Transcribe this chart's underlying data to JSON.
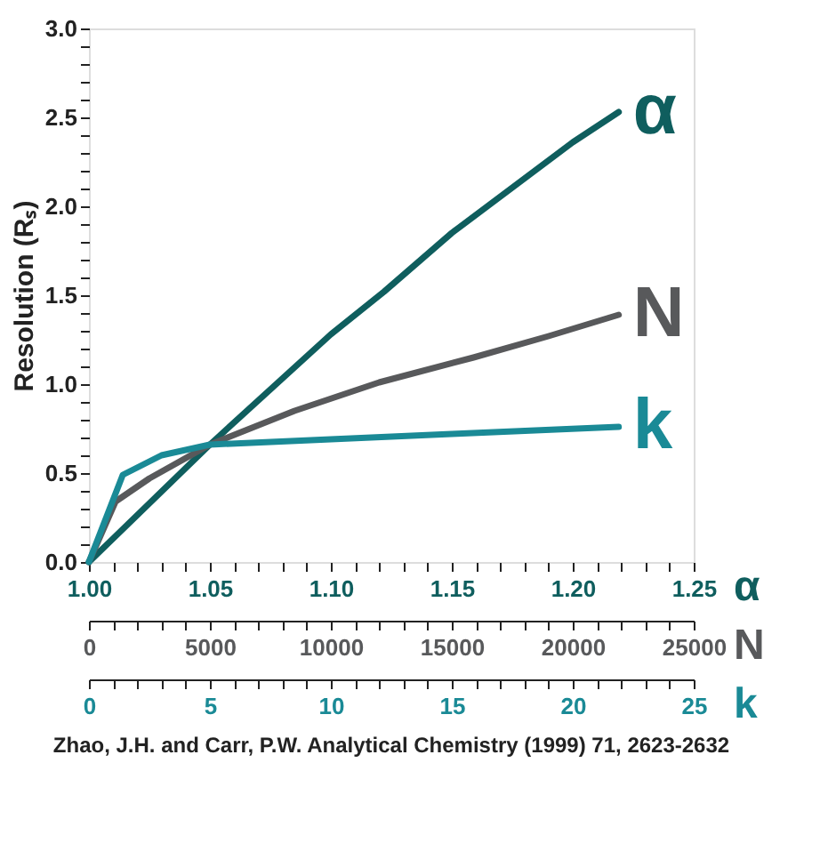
{
  "chart_data": [
    {
      "type": "line",
      "ylabel": "Resolution (Rₛ)",
      "xlabel": "α",
      "x2label": "N",
      "xlim": [
        1.0,
        1.25
      ],
      "xticks": [
        {
          "value": 1.0,
          "label": "1.00"
        },
        {
          "value": 1.01,
          "label": null
        },
        {
          "value": 1.02,
          "label": null
        },
        {
          "value": 1.03,
          "label": null
        },
        {
          "value": 1.04,
          "label": null
        },
        1.05,
        {
          "value": 1.06,
          "label": null
        },
        {
          "value": 1.07,
          "label": null
        },
        {
          "value": 1.08,
          "label": null
        },
        {
          "value": 1.09,
          "label": null
        },
        {
          "value": 1.1,
          "label": "1.10"
        },
        {
          "value": 1.11,
          "label": null
        },
        {
          "value": 1.12,
          "label": null
        },
        {
          "value": 1.13,
          "label": null
        },
        {
          "value": 1.14,
          "label": null
        },
        1.15,
        {
          "value": 1.16,
          "label": null
        },
        {
          "value": 1.17,
          "label": null
        },
        {
          "value": 1.18,
          "label": null
        },
        {
          "value": 1.19,
          "label": null
        },
        {
          "value": 1.2,
          "label": "1.20"
        },
        {
          "value": 1.21,
          "label": null
        },
        {
          "value": 1.22,
          "label": null
        },
        {
          "value": 1.23,
          "label": null
        },
        {
          "value": 1.24,
          "label": null
        },
        1.25
      ],
      "x2lim": [
        0,
        25000
      ],
      "x2ticks": [
        0,
        {
          "value": 1000,
          "label": null
        },
        {
          "value": 2000,
          "label": null
        },
        {
          "value": 3000,
          "label": null
        },
        {
          "value": 4000,
          "label": null
        },
        5000,
        {
          "value": 6000,
          "label": null
        },
        {
          "value": 7000,
          "label": null
        },
        {
          "value": 8000,
          "label": null
        },
        {
          "value": 9000,
          "label": null
        },
        10000,
        {
          "value": 11000,
          "label": null
        },
        {
          "value": 12000,
          "label": null
        },
        {
          "value": 13000,
          "label": null
        },
        {
          "value": 14000,
          "label": null
        },
        15000,
        {
          "value": 16000,
          "label": null
        },
        {
          "value": 17000,
          "label": null
        },
        {
          "value": 18000,
          "label": null
        },
        {
          "value": 19000,
          "label": null
        },
        20000,
        {
          "value": 21000,
          "label": null
        },
        {
          "value": 22000,
          "label": null
        },
        {
          "value": 23000,
          "label": null
        },
        {
          "value": 24000,
          "label": null
        },
        25000
      ],
      "ylim": [
        0,
        3.0
      ],
      "yticks": [
        {
          "value": 0,
          "label": "0.0"
        },
        {
          "value": 0.1,
          "label": null
        },
        {
          "value": 0.2,
          "label": null
        },
        {
          "value": 0.3,
          "label": null
        },
        {
          "value": 0.4,
          "label": null
        },
        0.5,
        {
          "value": 0.6,
          "label": null
        },
        {
          "value": 0.7,
          "label": null
        },
        {
          "value": 0.8,
          "label": null
        },
        {
          "value": 0.9,
          "label": null
        },
        {
          "value": 1.0,
          "label": "1.0"
        },
        {
          "value": 1.1,
          "label": null
        },
        {
          "value": 1.2,
          "label": null
        },
        {
          "value": 1.3,
          "label": null
        },
        {
          "value": 1.4,
          "label": null
        },
        1.5,
        {
          "value": 1.6,
          "label": null
        },
        {
          "value": 1.7,
          "label": null
        },
        {
          "value": 1.8,
          "label": null
        },
        {
          "value": 1.9,
          "label": null
        },
        {
          "value": 2.0,
          "label": "2.0"
        },
        {
          "value": 2.1,
          "label": null
        },
        {
          "value": 2.2,
          "label": null
        },
        {
          "value": 2.3,
          "label": null
        },
        {
          "value": 2.4,
          "label": null
        },
        2.5,
        {
          "value": 2.6,
          "label": null
        },
        {
          "value": 2.7,
          "label": null
        },
        {
          "value": 2.8,
          "label": null
        },
        {
          "value": 2.9,
          "label": null
        },
        {
          "value": 3.0,
          "label": "3.0"
        }
      ],
      "legend": false,
      "marker": "none",
      "line_style": "solid",
      "series": [
        {
          "name": "α",
          "color": "#0f5e5e",
          "x": [
            1.0,
            1.05,
            1.1,
            1.122,
            1.15,
            1.2,
            1.219
          ],
          "values": [
            0,
            0.66,
            1.28,
            1.52,
            1.85,
            2.36,
            2.53
          ]
        },
        {
          "name": "N",
          "color": "#58595b",
          "axis": "x2",
          "x": [
            0,
            1100,
            2500,
            5000,
            8500,
            12000,
            15900,
            19000,
            21900
          ],
          "values": [
            0,
            0.34,
            0.47,
            0.66,
            0.85,
            1.01,
            1.15,
            1.27,
            1.39
          ]
        }
      ],
      "annotations": [
        "Zhao, J.H. and Carr, P.W. Analytical Chemistry (1999) 71, 2623-2632"
      ]
    },
    {
      "type": "line",
      "xlabel": "k",
      "xlim": [
        0,
        25
      ],
      "xticks": [
        0,
        {
          "value": 1,
          "label": null
        },
        {
          "value": 2,
          "label": null
        },
        {
          "value": 3,
          "label": null
        },
        {
          "value": 4,
          "label": null
        },
        5,
        {
          "value": 6,
          "label": null
        },
        {
          "value": 7,
          "label": null
        },
        {
          "value": 8,
          "label": null
        },
        {
          "value": 9,
          "label": null
        },
        10,
        {
          "value": 11,
          "label": null
        },
        {
          "value": 12,
          "label": null
        },
        {
          "value": 13,
          "label": null
        },
        {
          "value": 14,
          "label": null
        },
        15,
        {
          "value": 16,
          "label": null
        },
        {
          "value": 17,
          "label": null
        },
        {
          "value": 18,
          "label": null
        },
        {
          "value": 19,
          "label": null
        },
        20,
        {
          "value": 21,
          "label": null
        },
        {
          "value": 22,
          "label": null
        },
        {
          "value": 23,
          "label": null
        },
        {
          "value": 24,
          "label": null
        },
        25
      ],
      "ylim": [
        0,
        3.0
      ],
      "tick_labels": "x",
      "legend": false,
      "marker": "none",
      "line_style": "solid",
      "series": [
        {
          "name": "k",
          "color": "#1a8a96",
          "x": [
            0,
            1.4,
            3.0,
            5.0,
            10,
            15,
            21.9
          ],
          "values": [
            0,
            0.49,
            0.6,
            0.66,
            0.69,
            0.72,
            0.76
          ]
        }
      ]
    }
  ]
}
